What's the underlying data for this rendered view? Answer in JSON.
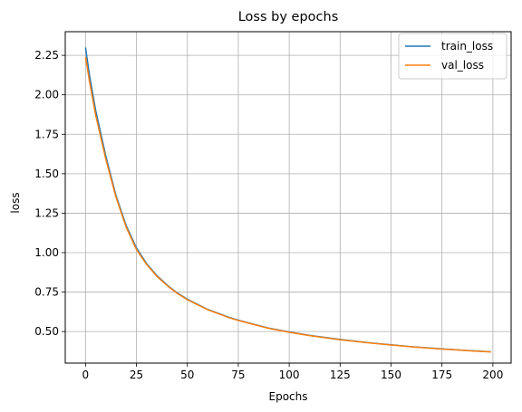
{
  "chart_data": {
    "type": "line",
    "title": "Loss by epochs",
    "xlabel": "Epochs",
    "ylabel": "loss",
    "xlim": [
      -9.95,
      208.95
    ],
    "ylim": [
      0.3,
      2.4
    ],
    "xticks": [
      0,
      25,
      50,
      75,
      100,
      125,
      150,
      175,
      200
    ],
    "xtick_labels": [
      "0",
      "25",
      "50",
      "75",
      "100",
      "125",
      "150",
      "175",
      "200"
    ],
    "yticks": [
      0.5,
      0.75,
      1.0,
      1.25,
      1.5,
      1.75,
      2.0,
      2.25
    ],
    "ytick_labels": [
      "0.50",
      "0.75",
      "1.00",
      "1.25",
      "1.50",
      "1.75",
      "2.00",
      "2.25"
    ],
    "grid": true,
    "legend": "top-right",
    "series": [
      {
        "name": "train_loss",
        "color": "#1f77b4",
        "x": [
          0,
          2,
          5,
          10,
          15,
          20,
          25,
          30,
          35,
          40,
          45,
          50,
          60,
          70,
          75,
          80,
          90,
          100,
          110,
          125,
          140,
          150,
          160,
          175,
          190,
          199
        ],
        "y": [
          2.3,
          2.12,
          1.9,
          1.61,
          1.36,
          1.17,
          1.03,
          0.93,
          0.855,
          0.795,
          0.745,
          0.705,
          0.64,
          0.592,
          0.572,
          0.555,
          0.522,
          0.497,
          0.476,
          0.45,
          0.428,
          0.416,
          0.404,
          0.39,
          0.378,
          0.372
        ]
      },
      {
        "name": "val_loss",
        "color": "#ff7f0e",
        "x": [
          0,
          2,
          5,
          10,
          15,
          20,
          25,
          30,
          35,
          40,
          45,
          50,
          60,
          70,
          75,
          80,
          90,
          100,
          110,
          125,
          140,
          150,
          160,
          175,
          190,
          199
        ],
        "y": [
          2.24,
          2.08,
          1.87,
          1.59,
          1.35,
          1.16,
          1.02,
          0.925,
          0.85,
          0.792,
          0.742,
          0.702,
          0.638,
          0.59,
          0.57,
          0.553,
          0.52,
          0.495,
          0.474,
          0.448,
          0.427,
          0.415,
          0.403,
          0.389,
          0.377,
          0.371
        ]
      }
    ]
  }
}
